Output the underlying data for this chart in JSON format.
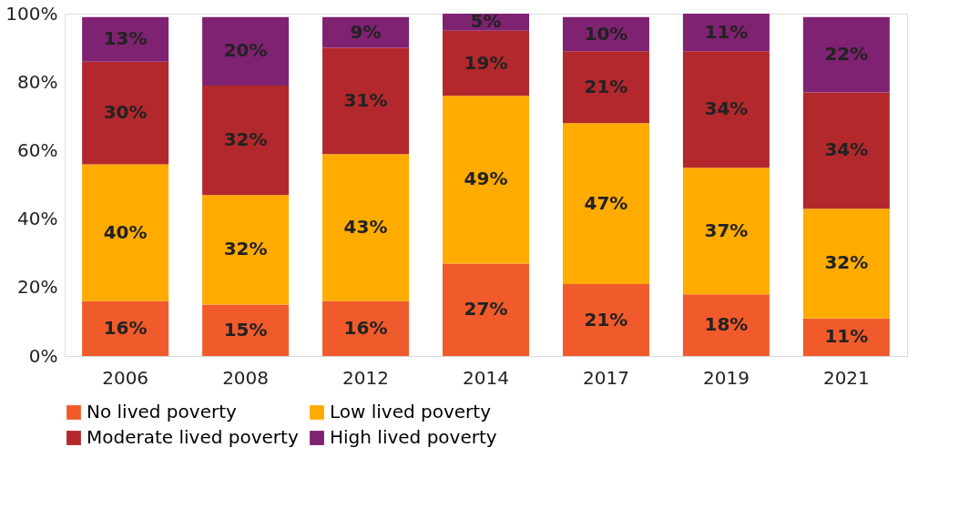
{
  "chart_data": {
    "type": "bar",
    "stacked": true,
    "categories": [
      "2006",
      "2008",
      "2012",
      "2014",
      "2017",
      "2019",
      "2021"
    ],
    "series": [
      {
        "name": "No lived poverty",
        "color": "#f15a2b",
        "values": [
          16,
          15,
          16,
          27,
          21,
          18,
          11
        ],
        "value_labels": [
          "16%",
          "15%",
          "16%",
          "27%",
          "21%",
          "18%",
          "11%"
        ]
      },
      {
        "name": "Low lived poverty",
        "color": "#ffab00",
        "values": [
          40,
          32,
          43,
          49,
          47,
          37,
          32
        ],
        "value_labels": [
          "40%",
          "32%",
          "43%",
          "49%",
          "47%",
          "37%",
          "32%"
        ]
      },
      {
        "name": "Moderate lived poverty",
        "color": "#b3282d",
        "values": [
          30,
          32,
          31,
          19,
          21,
          34,
          34
        ],
        "value_labels": [
          "30%",
          "32%",
          "31%",
          "19%",
          "21%",
          "34%",
          "34%"
        ]
      },
      {
        "name": "High lived poverty",
        "color": "#7e2271",
        "values": [
          13,
          20,
          9,
          5,
          10,
          11,
          22
        ],
        "value_labels": [
          "13%",
          "20%",
          "9%",
          "5%",
          "10%",
          "11%",
          "22%"
        ]
      }
    ],
    "ylim": [
      0,
      100
    ],
    "yticks": [
      {
        "value": 0,
        "label": "0%"
      },
      {
        "value": 20,
        "label": "20%"
      },
      {
        "value": 40,
        "label": "40%"
      },
      {
        "value": 60,
        "label": "60%"
      },
      {
        "value": 80,
        "label": "80%"
      },
      {
        "value": 100,
        "label": "100%"
      }
    ],
    "grid": false,
    "legend": "bottom"
  }
}
